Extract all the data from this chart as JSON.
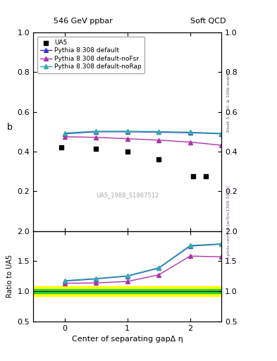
{
  "title_left": "546 GeV ppbar",
  "title_right": "Soft QCD",
  "right_label_top": "Rivet 3.1.10, ≥ 100k events",
  "right_label_bot": "mcplots.cern.ch [arXiv:1306.3436]",
  "watermark": "UA5_1988_S1867512",
  "ylabel_main": "b",
  "ylabel_ratio": "Ratio to UA5",
  "xlabel": "Center of separating gapΔ η",
  "ylim_main": [
    0.0,
    1.0
  ],
  "ylim_ratio": [
    0.5,
    2.0
  ],
  "xlim": [
    -0.5,
    2.5
  ],
  "ua5_x": [
    -0.05,
    0.5,
    1.0,
    1.5,
    2.05,
    2.25
  ],
  "ua5_y": [
    0.42,
    0.415,
    0.4,
    0.36,
    0.275,
    0.275
  ],
  "ua5_color": "#000000",
  "pythia_default_x": [
    0.0,
    0.5,
    1.0,
    1.5,
    2.0,
    2.5
  ],
  "pythia_default_y": [
    0.49,
    0.5,
    0.5,
    0.498,
    0.495,
    0.49
  ],
  "pythia_default_color": "#3333cc",
  "pythia_noFsr_x": [
    0.0,
    0.5,
    1.0,
    1.5,
    2.0,
    2.5
  ],
  "pythia_noFsr_y": [
    0.475,
    0.472,
    0.465,
    0.458,
    0.448,
    0.432
  ],
  "pythia_noFsr_color": "#aa33aa",
  "pythia_noRap_x": [
    0.0,
    0.5,
    1.0,
    1.5,
    2.0,
    2.5
  ],
  "pythia_noRap_y": [
    0.494,
    0.503,
    0.503,
    0.501,
    0.498,
    0.492
  ],
  "pythia_noRap_color": "#33aaaa",
  "band_green": [
    0.96,
    1.04
  ],
  "band_yellow": [
    0.92,
    1.08
  ],
  "xticks": [
    0,
    1,
    2
  ],
  "main_yticks": [
    0.2,
    0.4,
    0.6,
    0.8,
    1.0
  ],
  "ratio_yticks": [
    0.5,
    1.0,
    1.5,
    2.0
  ],
  "marker_size": 4,
  "line_width": 1.0
}
